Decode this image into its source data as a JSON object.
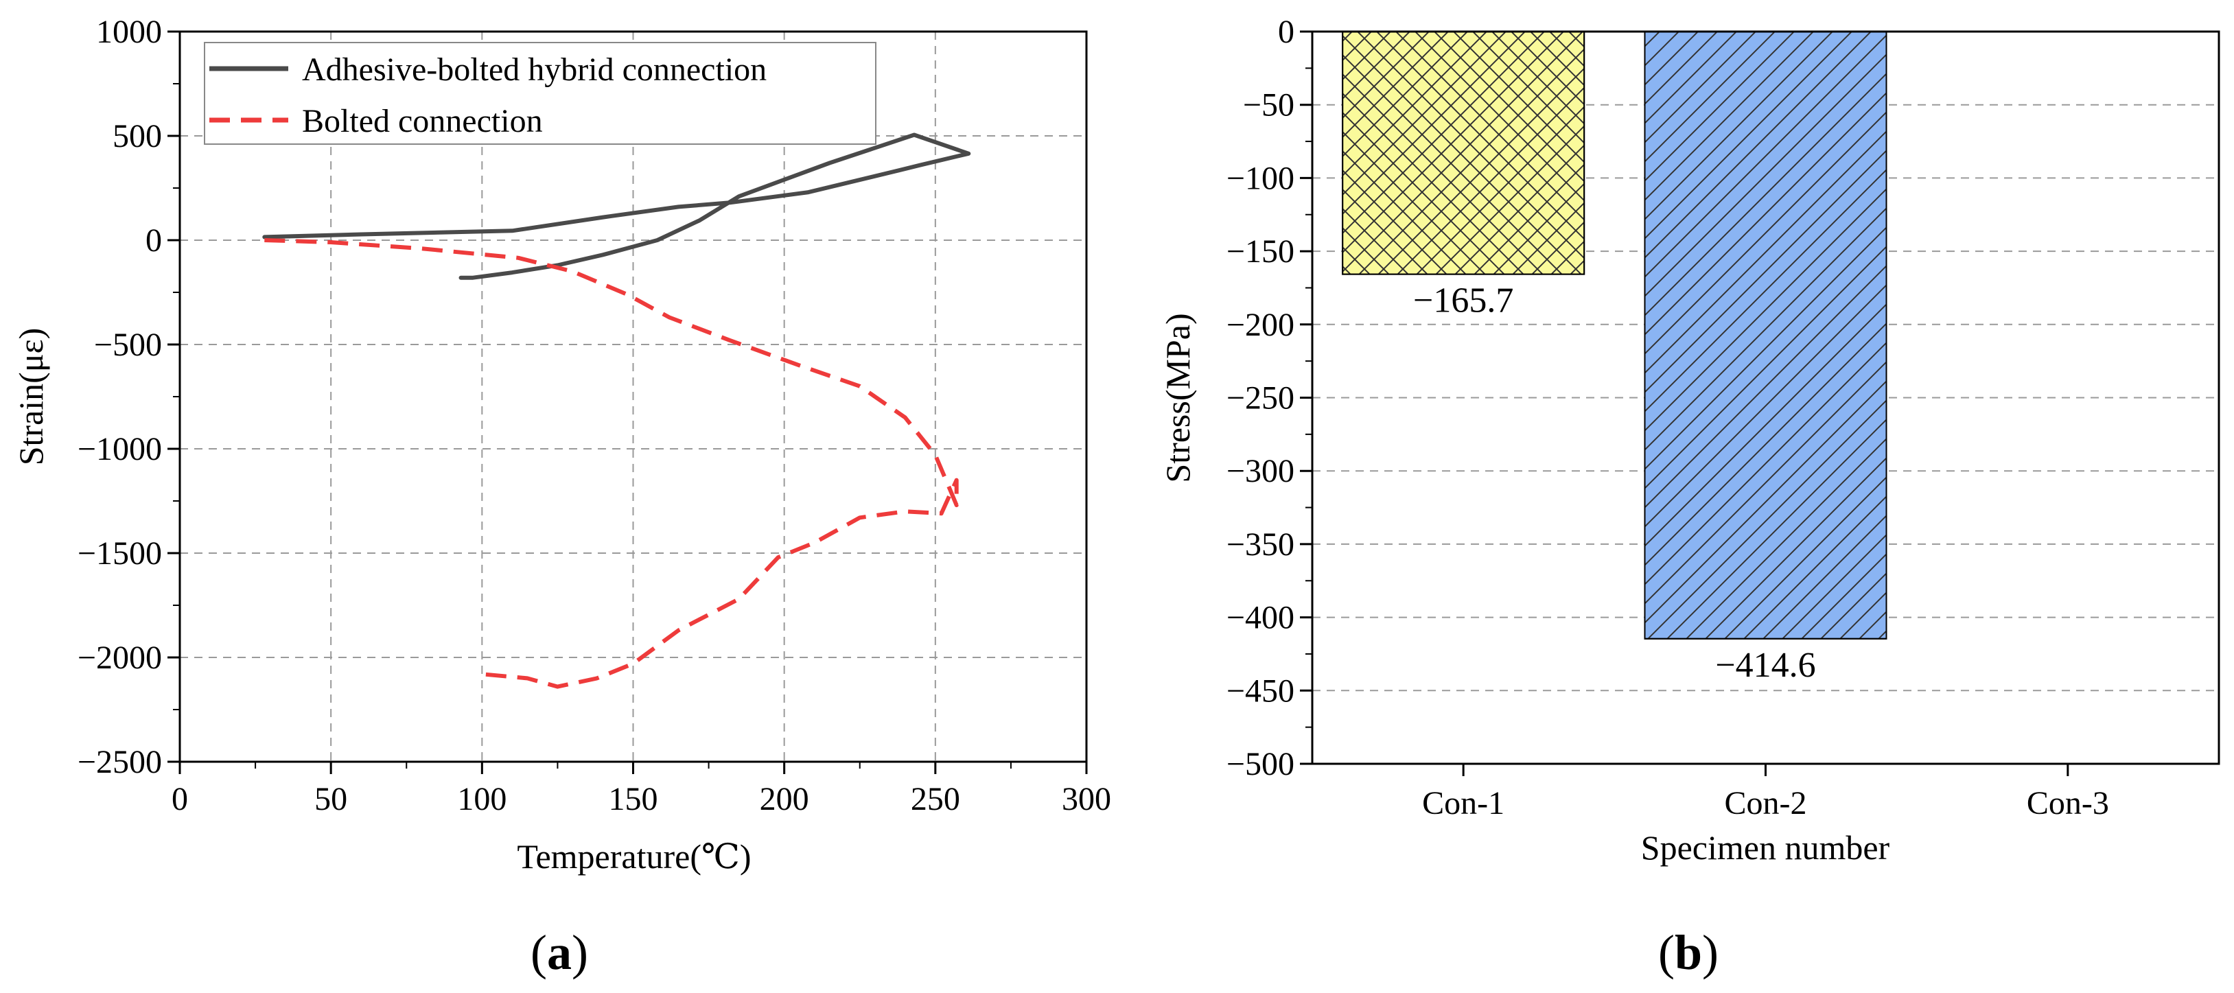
{
  "chart_data": [
    {
      "panel": "a",
      "type": "line",
      "xlabel": "Temperature(℃)",
      "ylabel": "Strain(με)",
      "xlim": [
        0,
        300
      ],
      "ylim": [
        -2500,
        1000
      ],
      "xticks": [
        0,
        50,
        100,
        150,
        200,
        250,
        300
      ],
      "yticks": [
        -2500,
        -2000,
        -1500,
        -1000,
        -500,
        0,
        500,
        1000
      ],
      "grid": true,
      "legend_position": "top-left",
      "series": [
        {
          "name": "Adhesive-bolted hybrid connection",
          "color": "#4a4a4a",
          "style": "solid",
          "points": [
            [
              28,
              15
            ],
            [
              60,
              28
            ],
            [
              110,
              45
            ],
            [
              140,
              110
            ],
            [
              165,
              160
            ],
            [
              182,
              180
            ],
            [
              208,
              230
            ],
            [
              238,
              335
            ],
            [
              245,
              360
            ],
            [
              261,
              415
            ],
            [
              243,
              505
            ],
            [
              215,
              370
            ],
            [
              185,
              210
            ],
            [
              172,
              95
            ],
            [
              158,
              0
            ],
            [
              140,
              -70
            ],
            [
              125,
              -120
            ],
            [
              110,
              -155
            ],
            [
              97,
              -180
            ],
            [
              93,
              -180
            ]
          ]
        },
        {
          "name": "Bolted connection",
          "color": "#ee3b3b",
          "style": "dashed",
          "points": [
            [
              28,
              0
            ],
            [
              50,
              -10
            ],
            [
              80,
              -40
            ],
            [
              112,
              -85
            ],
            [
              130,
              -150
            ],
            [
              148,
              -260
            ],
            [
              162,
              -370
            ],
            [
              182,
              -480
            ],
            [
              205,
              -600
            ],
            [
              225,
              -700
            ],
            [
              240,
              -850
            ],
            [
              250,
              -1030
            ],
            [
              255,
              -1200
            ],
            [
              257,
              -1270
            ],
            [
              257,
              -1150
            ],
            [
              252,
              -1310
            ],
            [
              240,
              -1300
            ],
            [
              225,
              -1330
            ],
            [
              210,
              -1450
            ],
            [
              198,
              -1520
            ],
            [
              185,
              -1720
            ],
            [
              165,
              -1870
            ],
            [
              150,
              -2030
            ],
            [
              138,
              -2100
            ],
            [
              125,
              -2140
            ],
            [
              115,
              -2100
            ],
            [
              100,
              -2080
            ]
          ]
        }
      ]
    },
    {
      "panel": "b",
      "type": "bar",
      "xlabel": "Specimen number",
      "ylabel": "Stress(MPa)",
      "ylim": [
        -500,
        0
      ],
      "yticks": [
        -500,
        -450,
        -400,
        -350,
        -300,
        -250,
        -200,
        -150,
        -100,
        -50,
        0
      ],
      "grid": true,
      "categories": [
        "Con-1",
        "Con-2",
        "Con-3"
      ],
      "values": [
        -165.7,
        -414.6,
        null
      ],
      "data_labels": [
        "−165.7",
        "−414.6",
        ""
      ],
      "bar_colors": [
        "#fafa9b",
        "#8ab4f3",
        ""
      ]
    }
  ],
  "panel_labels": {
    "a": "a",
    "b": "b"
  }
}
